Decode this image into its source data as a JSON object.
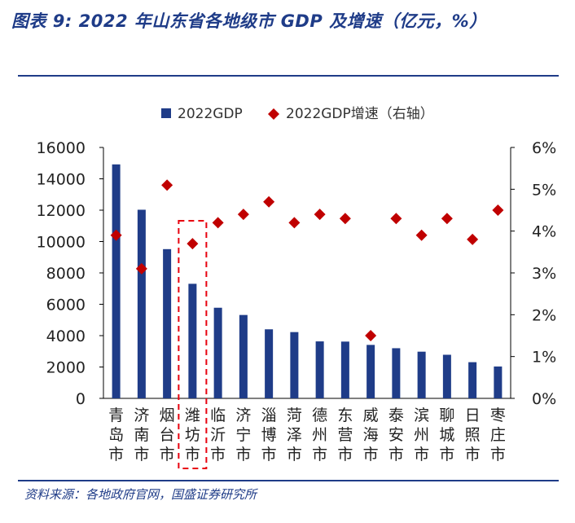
{
  "header": {
    "title": "图表 9: 2022 年山东省各地级市 GDP 及增速（亿元，%）"
  },
  "footer": {
    "source": "资料来源：各地政府官网，国盛证券研究所"
  },
  "colors": {
    "bar": "#1f3c88",
    "marker": "#c00000",
    "highlight": "#e8000f",
    "brand": "#1f3c88"
  },
  "chart_data": {
    "type": "bar",
    "categories": [
      "青岛市",
      "济南市",
      "烟台市",
      "潍坊市",
      "临沂市",
      "济宁市",
      "淄博市",
      "菏泽市",
      "德州市",
      "东营市",
      "威海市",
      "泰安市",
      "滨州市",
      "聊城市",
      "日照市",
      "枣庄市"
    ],
    "series": [
      {
        "name": "2022GDP",
        "type": "bar",
        "axis": "left",
        "values": [
          14920,
          12028,
          9516,
          7306,
          5779,
          5317,
          4403,
          4226,
          3633,
          3620,
          3409,
          3198,
          2977,
          2780,
          2307,
          2033
        ]
      },
      {
        "name": "2022GDP增速（右轴）",
        "type": "scatter",
        "axis": "right",
        "values": [
          3.9,
          3.1,
          5.1,
          3.7,
          4.2,
          4.4,
          4.7,
          4.2,
          4.4,
          4.3,
          1.5,
          4.3,
          3.9,
          4.3,
          3.8,
          4.5
        ]
      }
    ],
    "ylim_left": [
      0,
      16000
    ],
    "ylim_right": [
      0,
      6
    ],
    "left_ticks": [
      "0",
      "2000",
      "4000",
      "6000",
      "8000",
      "10000",
      "12000",
      "14000",
      "16000"
    ],
    "right_ticks": [
      "0%",
      "1%",
      "2%",
      "3%",
      "4%",
      "5%",
      "6%"
    ],
    "highlighted_category": "潍坊市",
    "legend_position": "top",
    "grid": false
  }
}
